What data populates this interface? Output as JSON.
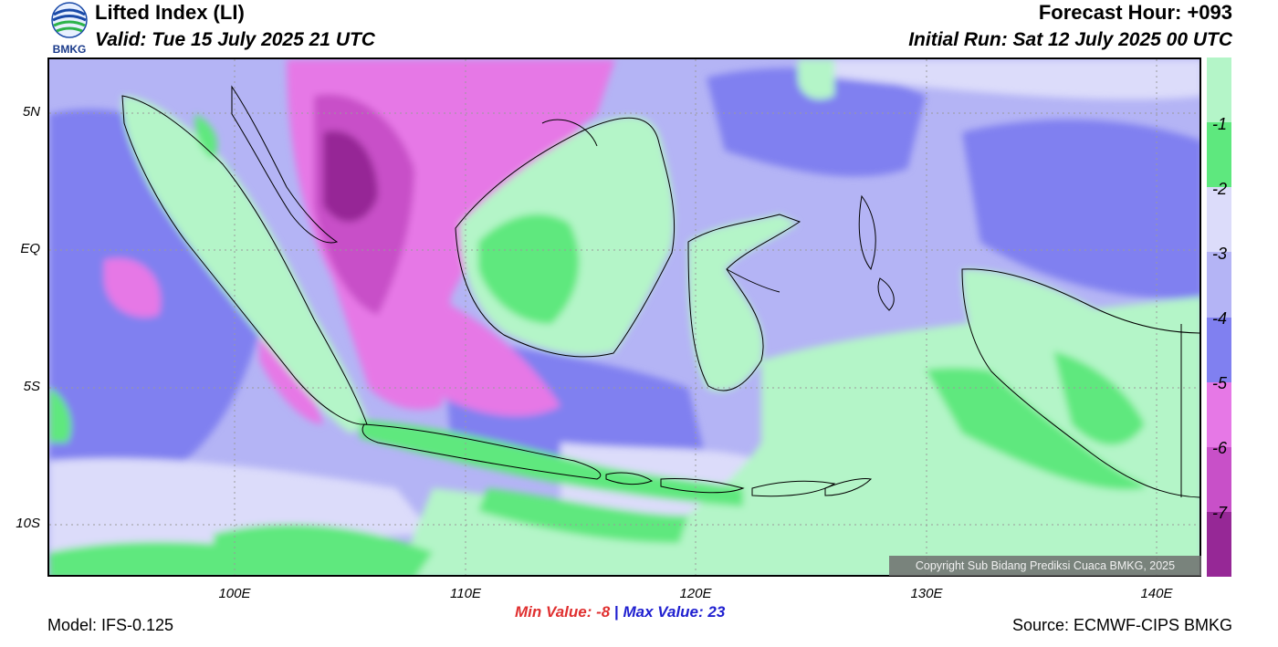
{
  "header": {
    "title": "Lifted Index (LI)",
    "valid": "Valid: Tue 15 July 2025 21 UTC",
    "forecast_hour": "Forecast Hour: +093",
    "initial_run": "Initial Run: Sat 12 July 2025 00 UTC",
    "logo_text": "BMKG"
  },
  "map": {
    "lat_labels": [
      "5N",
      "EQ",
      "5S",
      "10S"
    ],
    "lon_labels": [
      "100E",
      "110E",
      "120E",
      "130E",
      "140E"
    ],
    "copyright": "Copyright Sub Bidang Prediksi Cuaca BMKG, 2025"
  },
  "colorbar": {
    "labels": [
      "-1",
      "-2",
      "-3",
      "-4",
      "-5",
      "-6",
      "-7"
    ],
    "colors": [
      "#b4f5c8",
      "#5ee87e",
      "#dcdcfa",
      "#b4b4f5",
      "#8080f0",
      "#e678e6",
      "#c850c8",
      "#962896"
    ]
  },
  "stats": {
    "min_label": "Min Value:",
    "min_value": "-8",
    "separator": "|",
    "max_label": "Max Value:",
    "max_value": "23",
    "min_color": "#e03030",
    "max_color": "#2020d0"
  },
  "footer": {
    "model": "Model: IFS-0.125",
    "source": "Source: ECMWF-CIPS BMKG"
  }
}
